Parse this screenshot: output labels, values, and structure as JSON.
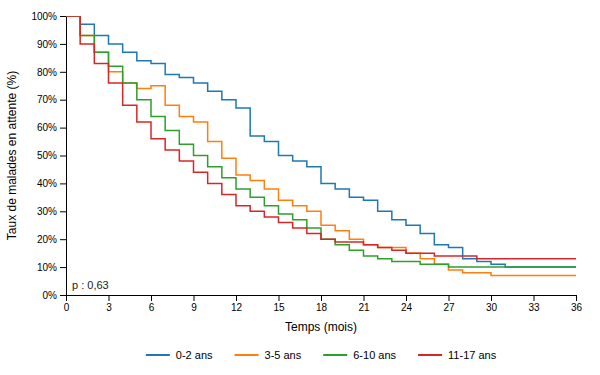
{
  "chart_data": {
    "type": "step",
    "xlabel": "Temps (mois)",
    "ylabel": "Taux de malades en attente (%)",
    "annotation": "p : 0,63",
    "x": [
      0,
      1,
      2,
      3,
      4,
      5,
      6,
      7,
      8,
      9,
      10,
      11,
      12,
      13,
      14,
      15,
      16,
      17,
      18,
      19,
      20,
      21,
      22,
      23,
      24,
      25,
      26,
      27,
      28,
      29,
      30,
      31,
      32,
      33,
      34,
      35,
      36
    ],
    "series": [
      {
        "name": "0-2 ans",
        "values": [
          100,
          97,
          93,
          90,
          87,
          84,
          83,
          79,
          78,
          76,
          73,
          70,
          67,
          57,
          55,
          50,
          48,
          46,
          40,
          38,
          35,
          34,
          30,
          27,
          25,
          22,
          18,
          17,
          13,
          12,
          11,
          10,
          10,
          10,
          10,
          10,
          10
        ]
      },
      {
        "name": "3-5 ans",
        "values": [
          100,
          93,
          87,
          80,
          76,
          74,
          75,
          68,
          64,
          62,
          55,
          49,
          43,
          41,
          38,
          34,
          32,
          30,
          25,
          23,
          20,
          18,
          17,
          17,
          15,
          13,
          11,
          9,
          8,
          8,
          7,
          7,
          7,
          7,
          7,
          7,
          7
        ]
      },
      {
        "name": "6-10 ans",
        "values": [
          100,
          93,
          87,
          82,
          76,
          70,
          64,
          59,
          54,
          50,
          46,
          42,
          38,
          35,
          32,
          29,
          27,
          24,
          20,
          18,
          16,
          14,
          13,
          12,
          12,
          11,
          11,
          10,
          10,
          10,
          10,
          10,
          10,
          10,
          10,
          10,
          10
        ]
      },
      {
        "name": "11-17 ans",
        "values": [
          100,
          90,
          83,
          76,
          68,
          62,
          56,
          52,
          48,
          44,
          40,
          36,
          32,
          30,
          28,
          26,
          24,
          22,
          20,
          19,
          19,
          18,
          17,
          16,
          15,
          15,
          14,
          14,
          14,
          13,
          13,
          13,
          13,
          13,
          13,
          13,
          13
        ]
      }
    ],
    "xlim": [
      0,
      36
    ],
    "ylim": [
      0,
      100
    ],
    "xticks": [
      0,
      3,
      6,
      9,
      12,
      15,
      18,
      21,
      24,
      27,
      30,
      33,
      36
    ],
    "yticks": [
      {
        "value": 0,
        "label": "0%"
      },
      {
        "value": 10,
        "label": "10%"
      },
      {
        "value": 20,
        "label": "20%"
      },
      {
        "value": 30,
        "label": "30%"
      },
      {
        "value": 40,
        "label": "40%"
      },
      {
        "value": 50,
        "label": "50%"
      },
      {
        "value": 60,
        "label": "60%"
      },
      {
        "value": 70,
        "label": "70%"
      },
      {
        "value": 80,
        "label": "80%"
      },
      {
        "value": 90,
        "label": "90%"
      },
      {
        "value": 100,
        "label": "100%"
      }
    ],
    "grid": false,
    "legend": "bottom"
  }
}
